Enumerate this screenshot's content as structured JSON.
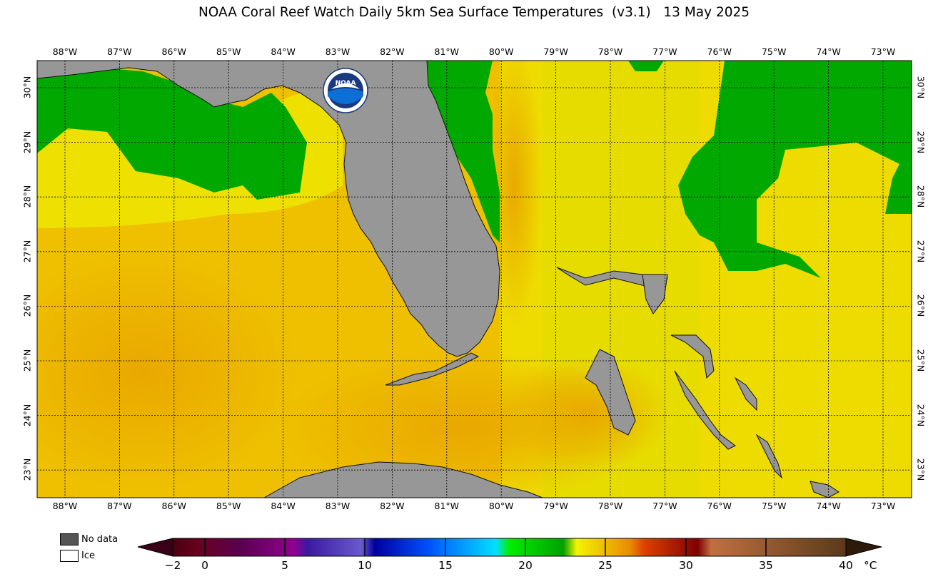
{
  "title": "NOAA Coral Reef Watch Daily 5km Sea Surface Temperatures  (v3.1)   13 May 2025",
  "logo_text": "NOAA",
  "lon_labels": [
    "88°W",
    "87°W",
    "86°W",
    "85°W",
    "84°W",
    "83°W",
    "82°W",
    "81°W",
    "80°W",
    "79°W",
    "78°W",
    "77°W",
    "76°W",
    "75°W",
    "74°W",
    "73°W"
  ],
  "lat_labels": [
    "30°N",
    "29°N",
    "28°N",
    "27°N",
    "26°N",
    "25°N",
    "24°N",
    "23°N"
  ],
  "legend": {
    "no_data": "No data",
    "ice": "Ice",
    "no_data_color": "#555555",
    "ice_color": "#ffffff"
  },
  "colorbar": {
    "ticks": [
      "−2",
      "0",
      "5",
      "10",
      "15",
      "20",
      "25",
      "30",
      "35",
      "40"
    ],
    "unit": "°C",
    "colors": {
      "below_min": "#3a0018",
      "above_max": "#2e1a0a"
    }
  },
  "colors": {
    "land": "#989898",
    "sea_warm": "#eebb00",
    "sea_mid": "#f4e200",
    "sea_cool": "#00a800"
  }
}
